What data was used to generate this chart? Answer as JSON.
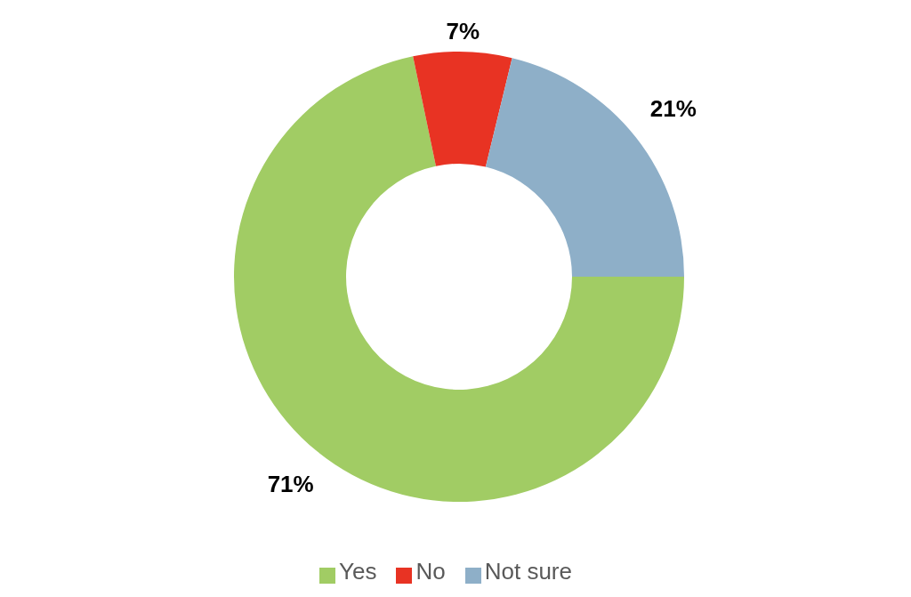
{
  "chart_data": {
    "type": "donut",
    "categories": [
      "Yes",
      "No",
      "Not sure"
    ],
    "values": [
      71,
      7,
      21
    ],
    "colors": [
      "#a1cc64",
      "#e83323",
      "#8eafc8"
    ],
    "value_labels": [
      "71%",
      "7%",
      "21%"
    ],
    "legend": "bottom"
  }
}
